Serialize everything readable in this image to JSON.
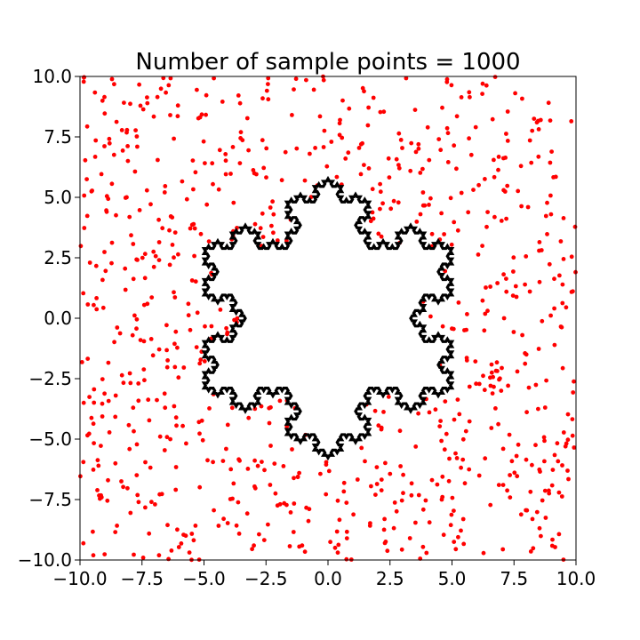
{
  "chart_data": {
    "type": "scatter",
    "title": "Number of sample points = 1000",
    "xlabel": "",
    "ylabel": "",
    "xlim": [
      -10,
      10
    ],
    "ylim": [
      -10,
      10
    ],
    "xticks": [
      "−10.0",
      "−7.5",
      "−5.0",
      "−2.5",
      "0.0",
      "2.5",
      "5.0",
      "7.5",
      "10.0"
    ],
    "yticks": [
      "10.0",
      "7.5",
      "5.0",
      "2.5",
      "0.0",
      "−2.5",
      "−5.0",
      "−7.5",
      "−10.0"
    ],
    "xtick_values": [
      -10,
      -7.5,
      -5,
      -2.5,
      0,
      2.5,
      5,
      7.5,
      10
    ],
    "ytick_values": [
      10,
      7.5,
      5,
      2.5,
      0,
      -2.5,
      -5,
      -7.5,
      -10
    ],
    "grid": false,
    "series": [
      {
        "kind": "scatter",
        "color": "#ff0000",
        "count": 1000,
        "distribution": "uniform random over axes range, points inside snowflake hidden",
        "seed": 7
      },
      {
        "kind": "koch-snowflake-outline",
        "color": "#000000",
        "iterations": 4,
        "vertices_xy": [
          [
            0,
            5.77
          ],
          [
            -5,
            -2.89
          ],
          [
            5,
            -2.89
          ]
        ]
      }
    ]
  }
}
